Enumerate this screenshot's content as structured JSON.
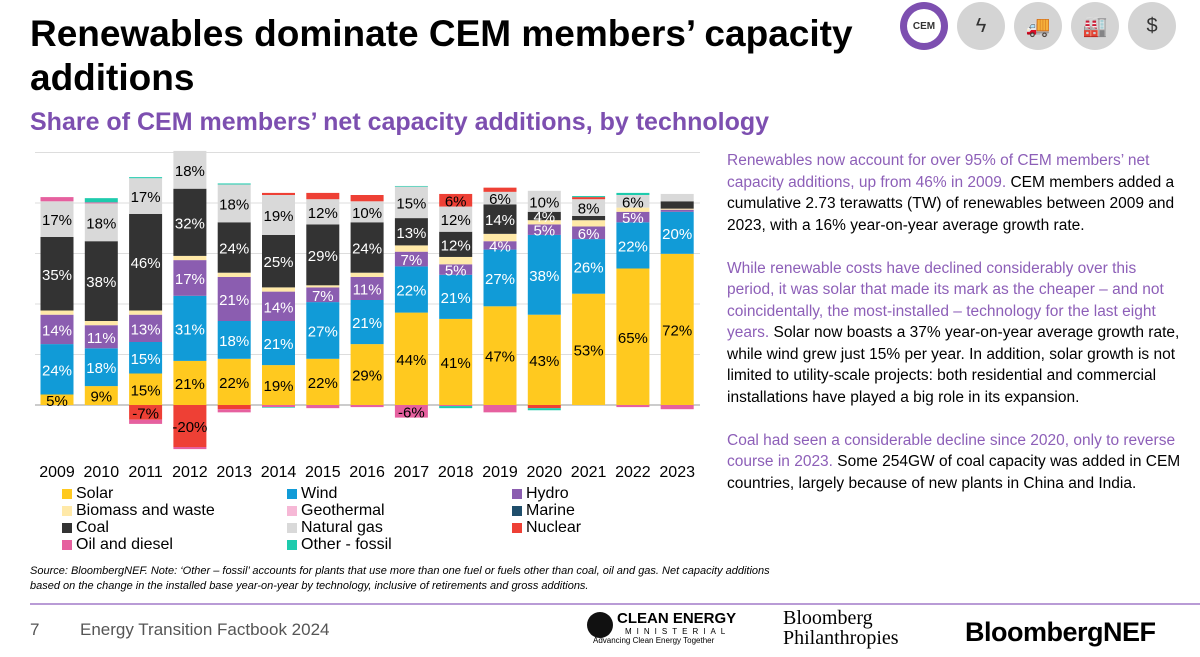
{
  "title": "Renewables dominate CEM members’ capacity additions",
  "subtitle": "Share of CEM members’ net capacity additions, by technology",
  "header_icons": [
    "cem-logo-icon",
    "lightning-icon",
    "vehicles-icon",
    "factory-icon",
    "dollar-icon"
  ],
  "header_icon_text": "CEM",
  "chart_data": {
    "type": "bar",
    "stacked": true,
    "categories": [
      "2009",
      "2010",
      "2011",
      "2012",
      "2013",
      "2014",
      "2015",
      "2016",
      "2017",
      "2018",
      "2019",
      "2020",
      "2021",
      "2022",
      "2023"
    ],
    "series": [
      {
        "name": "Solar",
        "color": "#FFC91F",
        "values": [
          5,
          9,
          15,
          21,
          22,
          19,
          22,
          29,
          44,
          41,
          47,
          43,
          53,
          65,
          72
        ]
      },
      {
        "name": "Wind",
        "color": "#119BD7",
        "values": [
          24,
          18,
          15,
          31,
          18,
          21,
          27,
          21,
          22,
          21,
          27,
          38,
          26,
          22,
          20
        ]
      },
      {
        "name": "Hydro",
        "color": "#8B5DB0",
        "values": [
          14,
          11,
          13,
          17,
          21,
          14,
          7,
          11,
          7,
          5,
          4,
          5,
          6,
          5,
          1
        ]
      },
      {
        "name": "Biomass and waste",
        "color": "#FFE9A8",
        "values": [
          2,
          2,
          2,
          2,
          2,
          2,
          1,
          2,
          3,
          3.5,
          3.5,
          2,
          3,
          2,
          0.5
        ]
      },
      {
        "name": "Geothermal",
        "color": "#F6B8D6",
        "values": [
          0,
          0,
          0,
          0,
          0,
          0,
          0,
          0,
          0,
          0,
          0,
          0,
          0,
          0,
          0
        ]
      },
      {
        "name": "Marine",
        "color": "#1F4E6B",
        "values": [
          0,
          0,
          0,
          0,
          0,
          0,
          0,
          0,
          0,
          0,
          0,
          0,
          0,
          0,
          0
        ]
      },
      {
        "name": "Coal",
        "color": "#333333",
        "values": [
          35,
          38,
          46,
          32,
          24,
          25,
          29,
          24,
          13,
          12,
          14,
          4,
          2,
          0,
          3.5
        ]
      },
      {
        "name": "Natural gas",
        "color": "#D9D9D9",
        "values": [
          17,
          18,
          17,
          18,
          18,
          19,
          12,
          10,
          15,
          12,
          6,
          10,
          8,
          6,
          3.5
        ]
      },
      {
        "name": "Nuclear",
        "color": "#EE4035",
        "values": [
          0,
          0,
          -7,
          -20,
          -2,
          1,
          3,
          3,
          0,
          6,
          2,
          -1.5,
          1,
          0,
          0
        ]
      },
      {
        "name": "Oil and diesel",
        "color": "#E6609F",
        "values": [
          2,
          0.5,
          -2,
          -1,
          -1.5,
          -1,
          -1.5,
          -1,
          -6,
          -0.5,
          -3.5,
          0,
          0,
          -1,
          -2
        ]
      },
      {
        "name": "Other - fossil",
        "color": "#1ECBAD",
        "values": [
          0,
          2,
          0.5,
          0,
          0.5,
          -0.3,
          0,
          0,
          0.3,
          -1,
          0,
          -1,
          0.5,
          1,
          0
        ]
      }
    ],
    "label_threshold": 4,
    "ylabel": "",
    "xlabel": "",
    "grid": true,
    "legend": "bottom"
  },
  "side": {
    "p1a": "Renewables now account for over 95% of CEM members’ net capacity additions, up from 46% in 2009.",
    "p1b": " CEM members added a cumulative 2.73 terawatts (TW) of renewables between 2009 and 2023, with a 16% year-on-year average growth rate.",
    "p2a": "While renewable costs have declined considerably over this period, it was solar that made its mark as the cheaper – and not coincidentally, the most-installed – technology for the last eight years.",
    "p2b": " Solar now boasts a 37% year-on-year average growth rate, while wind grew just 15% per year. In addition, solar growth is not limited to utility-scale projects: both residential and commercial installations have played a big role in its expansion.",
    "p3a": "Coal had seen a considerable decline since 2020, only to reverse course in 2023.",
    "p3b": " Some 254GW of coal capacity was added in CEM countries, largely because of new plants in China and India."
  },
  "note": "Source: BloombergNEF. Note: ‘Other – fossil’ accounts for plants that use more than one fuel or fuels other than coal, oil and gas. Net capacity additions based on the change in the installed base year-on-year by technology, inclusive of retirements and gross additions.",
  "footer": {
    "page": "7",
    "title": "Energy Transition Factbook 2024",
    "cem_logo": [
      "CLEAN ENERGY",
      "MINISTERIAL",
      "Advancing Clean Energy Together"
    ],
    "bp_logo": [
      "Bloomberg",
      "Philanthropies"
    ],
    "bnef_logo": "BloombergNEF"
  }
}
